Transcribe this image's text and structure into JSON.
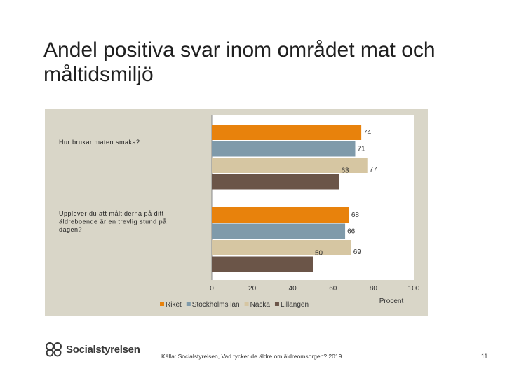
{
  "slide": {
    "title": "Andel positiva svar inom området mat och måltidsmiljö",
    "logo_text": "Socialstyrelsen",
    "source": "Källa: Socialstyrelsen, Vad tycker de äldre om äldreomsorgen? 2019",
    "page_number": "11"
  },
  "chart_data": {
    "type": "bar",
    "orientation": "horizontal",
    "categories": [
      "Hur brukar maten smaka?",
      "Upplever du att måltiderna på ditt äldreboende är en trevlig stund på dagen?"
    ],
    "series": [
      {
        "name": "Riket",
        "color": "#e8820c",
        "values": [
          74,
          68
        ]
      },
      {
        "name": "Stockholms län",
        "color": "#7f9aaa",
        "values": [
          71,
          66
        ]
      },
      {
        "name": "Nacka",
        "color": "#d6c6a2",
        "values": [
          77,
          69
        ]
      },
      {
        "name": "Lillängen",
        "color": "#6b5548",
        "values": [
          63,
          50
        ]
      }
    ],
    "xlim": [
      0,
      100
    ],
    "xticks": [
      "0",
      "20",
      "40",
      "60",
      "80",
      "100"
    ],
    "xlabel": "Procent",
    "legend_position": "bottom",
    "background_color": "#d9d6c8"
  }
}
